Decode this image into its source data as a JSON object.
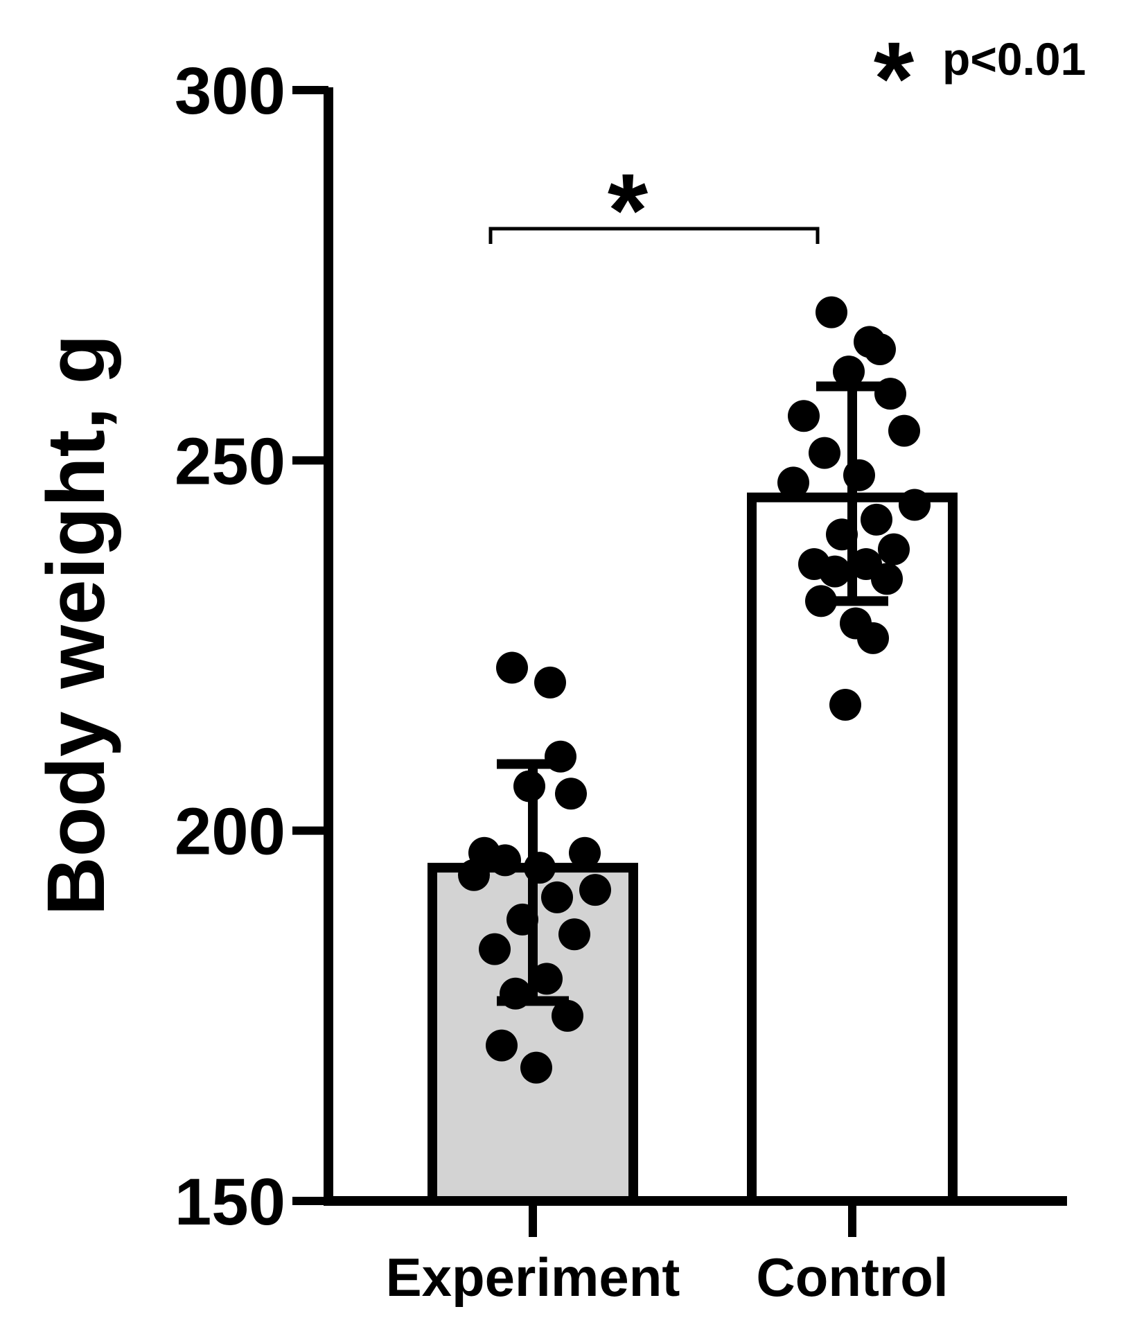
{
  "chart_data": {
    "type": "bar",
    "title": "",
    "xlabel": "",
    "ylabel": "Body weight, g",
    "ylim": [
      150,
      300
    ],
    "yticks": [
      150,
      200,
      250,
      300
    ],
    "categories": [
      "Experiment",
      "Control"
    ],
    "values": [
      195,
      245
    ],
    "error": [
      {
        "low": 177,
        "high": 209
      },
      {
        "low": 231,
        "high": 260
      }
    ],
    "bar_colors": [
      "#d3d3d3",
      "#ffffff"
    ],
    "points": [
      [
        222,
        220,
        210,
        206,
        205,
        197,
        197,
        196,
        195,
        194,
        192,
        191,
        188,
        186,
        184,
        180,
        178,
        175,
        171,
        168
      ],
      [
        270,
        266,
        265,
        262,
        259,
        256,
        254,
        251,
        248,
        247,
        244,
        242,
        240,
        238,
        236,
        236,
        235,
        234,
        231,
        228,
        226,
        217
      ]
    ],
    "significance": {
      "symbol": "*",
      "between": [
        "Experiment",
        "Control"
      ]
    },
    "annotation": {
      "symbol": "*",
      "text": "p<0.01"
    },
    "grid": false,
    "legend": "none"
  }
}
